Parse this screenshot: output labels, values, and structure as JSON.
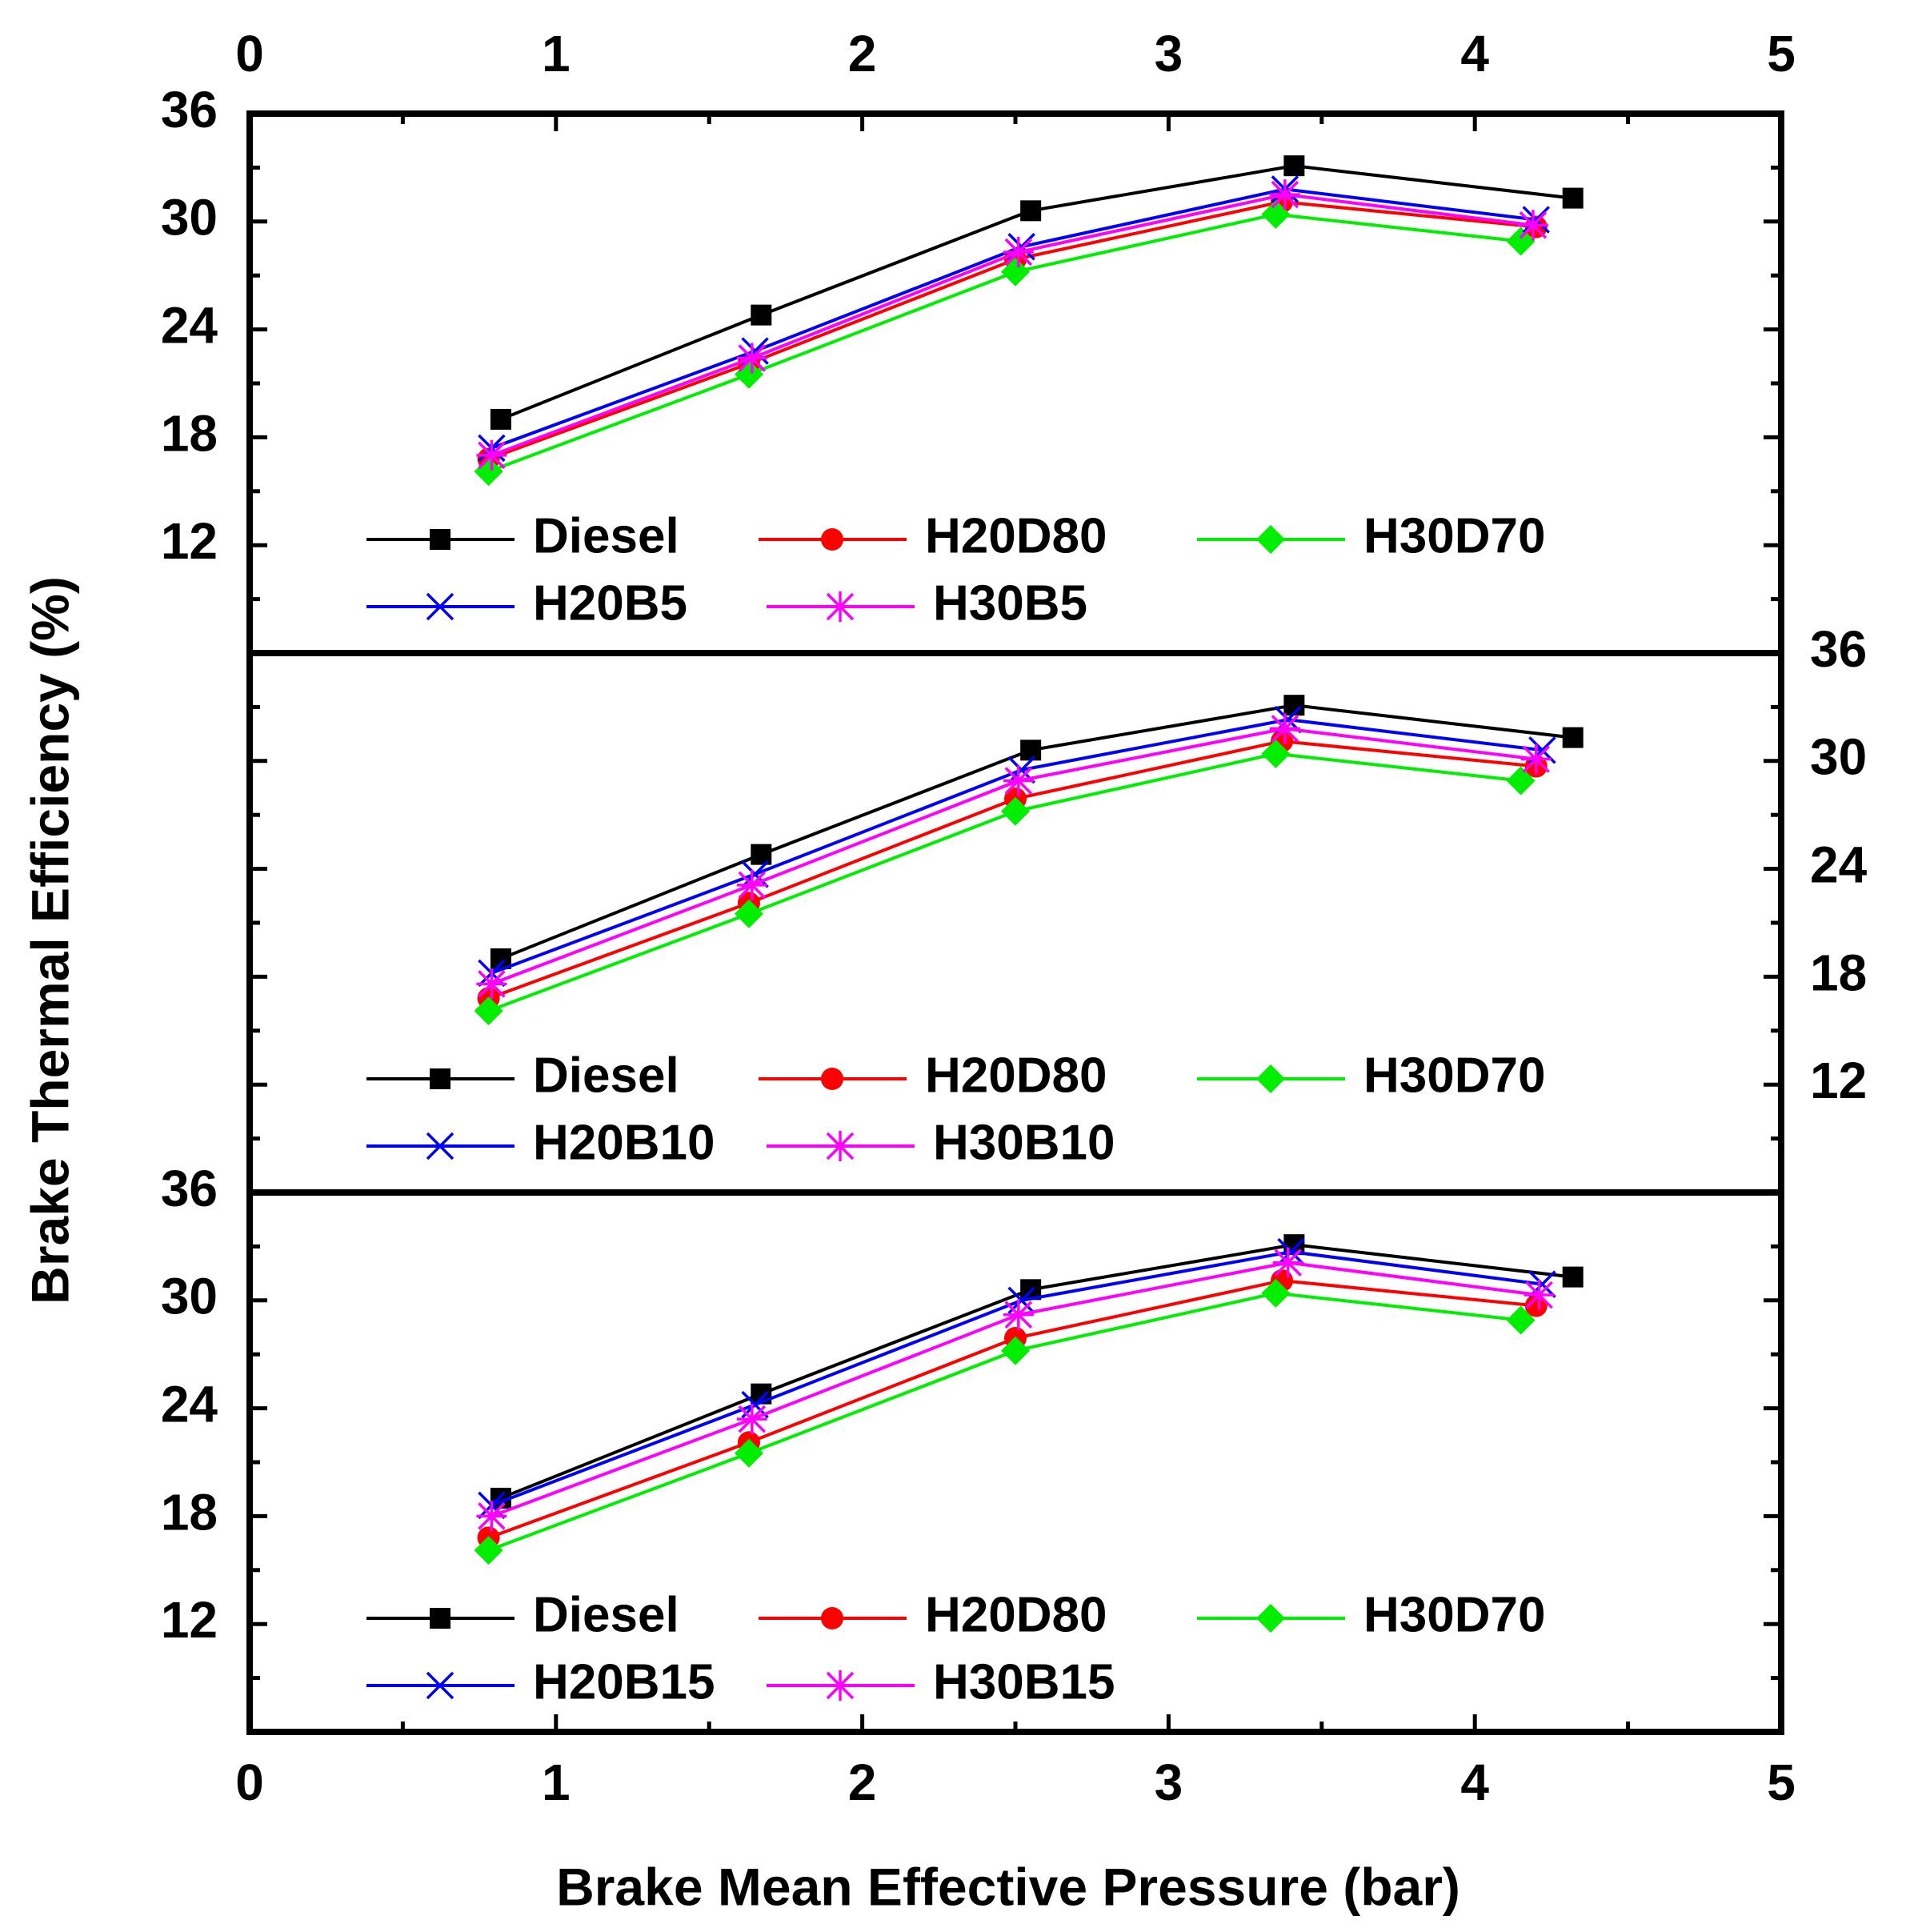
{
  "chart_data": {
    "type": "line",
    "xlabel": "Brake Mean Effective Pressure (bar)",
    "ylabel": "Brake Thermal Efficiency (%)",
    "xlim": [
      0,
      5
    ],
    "x_ticks": [
      "0",
      "1",
      "2",
      "3",
      "4",
      "5"
    ],
    "grid": false,
    "colors": {
      "Diesel": "#000000",
      "H20D80": "#ff0000",
      "H30D70": "#00ee00",
      "H20B": "#0000ff",
      "H30B": "#ff00ff"
    },
    "panels": [
      {
        "position": "top",
        "ylim": [
          6,
          36
        ],
        "y_ticks": [
          "12",
          "18",
          "24",
          "30",
          "36"
        ],
        "y_axis_side": "left",
        "legend": {
          "row1": [
            "Diesel",
            "H20D80",
            "H30D70"
          ],
          "row2": [
            "H20B5",
            "H30B5"
          ]
        },
        "series": [
          {
            "name": "Diesel",
            "marker": "square",
            "x": [
              0.82,
              1.67,
              2.55,
              3.41,
              4.32
            ],
            "y": [
              19.0,
              24.8,
              30.6,
              33.1,
              31.3
            ]
          },
          {
            "name": "H20D80",
            "marker": "circle",
            "x": [
              0.78,
              1.63,
              2.5,
              3.37,
              4.2
            ],
            "y": [
              16.8,
              22.1,
              27.9,
              31.1,
              29.7
            ]
          },
          {
            "name": "H30D70",
            "marker": "diamond",
            "x": [
              0.78,
              1.63,
              2.5,
              3.35,
              4.15
            ],
            "y": [
              16.1,
              21.5,
              27.2,
              30.4,
              28.9
            ]
          },
          {
            "name": "H20B5",
            "marker": "x",
            "x": [
              0.79,
              1.65,
              2.52,
              3.38,
              4.2
            ],
            "y": [
              17.4,
              22.8,
              28.6,
              31.8,
              30.1
            ]
          },
          {
            "name": "H30B5",
            "marker": "star",
            "x": [
              0.79,
              1.64,
              2.51,
              3.38,
              4.19
            ],
            "y": [
              17.0,
              22.4,
              28.3,
              31.5,
              29.8
            ]
          }
        ]
      },
      {
        "position": "middle",
        "ylim": [
          6,
          36
        ],
        "y_ticks": [
          "12",
          "18",
          "24",
          "30",
          "36"
        ],
        "y_axis_side": "right",
        "legend": {
          "row1": [
            "Diesel",
            "H20D80",
            "H30D70"
          ],
          "row2": [
            "H20B10",
            "H30B10"
          ]
        },
        "series": [
          {
            "name": "Diesel",
            "marker": "square",
            "x": [
              0.82,
              1.67,
              2.55,
              3.41,
              4.32
            ],
            "y": [
              19.0,
              24.8,
              30.6,
              33.1,
              31.3
            ]
          },
          {
            "name": "H20D80",
            "marker": "circle",
            "x": [
              0.78,
              1.63,
              2.5,
              3.37,
              4.2
            ],
            "y": [
              16.8,
              22.1,
              27.9,
              31.1,
              29.7
            ]
          },
          {
            "name": "H30D70",
            "marker": "diamond",
            "x": [
              0.78,
              1.63,
              2.5,
              3.35,
              4.15
            ],
            "y": [
              16.1,
              21.5,
              27.2,
              30.4,
              28.9
            ]
          },
          {
            "name": "H20B10",
            "marker": "x",
            "x": [
              0.79,
              1.65,
              2.52,
              3.39,
              4.22
            ],
            "y": [
              18.2,
              23.7,
              29.5,
              32.3,
              30.6
            ]
          },
          {
            "name": "H30B10",
            "marker": "star",
            "x": [
              0.79,
              1.64,
              2.51,
              3.38,
              4.2
            ],
            "y": [
              17.6,
              23.1,
              28.9,
              31.8,
              30.1
            ]
          }
        ]
      },
      {
        "position": "bottom",
        "ylim": [
          6,
          36
        ],
        "y_ticks": [
          "12",
          "18",
          "24",
          "30",
          "36"
        ],
        "y_axis_side": "left",
        "legend": {
          "row1": [
            "Diesel",
            "H20D80",
            "H30D70"
          ],
          "row2": [
            "H20B15",
            "H30B15"
          ]
        },
        "series": [
          {
            "name": "Diesel",
            "marker": "square",
            "x": [
              0.82,
              1.67,
              2.55,
              3.41,
              4.32
            ],
            "y": [
              19.0,
              24.8,
              30.6,
              33.1,
              31.3
            ]
          },
          {
            "name": "H20D80",
            "marker": "circle",
            "x": [
              0.78,
              1.63,
              2.5,
              3.37,
              4.2
            ],
            "y": [
              16.8,
              22.1,
              27.9,
              31.1,
              29.7
            ]
          },
          {
            "name": "H30D70",
            "marker": "diamond",
            "x": [
              0.78,
              1.63,
              2.5,
              3.35,
              4.15
            ],
            "y": [
              16.1,
              21.5,
              27.2,
              30.4,
              28.9
            ]
          },
          {
            "name": "H20B15",
            "marker": "x",
            "x": [
              0.79,
              1.65,
              2.52,
              3.4,
              4.22
            ],
            "y": [
              18.6,
              24.2,
              30.0,
              32.7,
              30.9
            ]
          },
          {
            "name": "H30B15",
            "marker": "star",
            "x": [
              0.79,
              1.64,
              2.51,
              3.39,
              4.21
            ],
            "y": [
              18.0,
              23.4,
              29.2,
              32.1,
              30.3
            ]
          }
        ]
      }
    ]
  }
}
